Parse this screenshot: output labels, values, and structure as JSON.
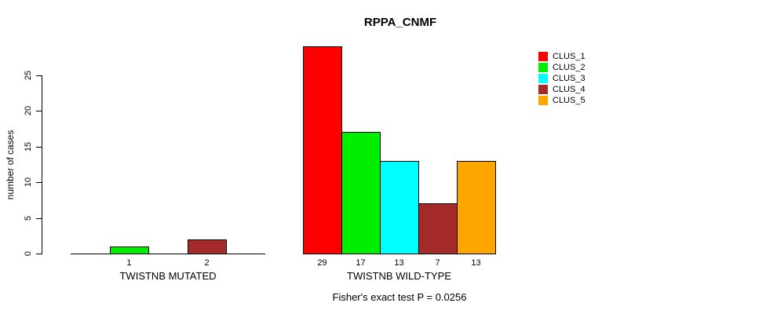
{
  "chart_data": {
    "type": "bar",
    "title": "RPPA_CNMF",
    "ylabel": "number of cases",
    "xlabel": "",
    "yticks": [
      0,
      5,
      10,
      15,
      20,
      25
    ],
    "ylim": [
      0,
      29
    ],
    "grid": false,
    "legend_position": "top-right",
    "legend_entries": [
      {
        "label": "CLUS_1",
        "color": "#FF0000"
      },
      {
        "label": "CLUS_2",
        "color": "#00EE00"
      },
      {
        "label": "CLUS_3",
        "color": "#00FFFF"
      },
      {
        "label": "CLUS_4",
        "color": "#A52A2A"
      },
      {
        "label": "CLUS_5",
        "color": "#FFA500"
      }
    ],
    "series_colors": [
      "#FF0000",
      "#00EE00",
      "#00FFFF",
      "#A52A2A",
      "#FFA500"
    ],
    "groups": [
      {
        "label": "TWISTNB MUTATED",
        "clusters": [
          "CLUS_1",
          "CLUS_2",
          "CLUS_3",
          "CLUS_4",
          "CLUS_5"
        ],
        "values": [
          0,
          1,
          0,
          2,
          0
        ],
        "bar_labels": [
          "",
          "1",
          "",
          "2",
          ""
        ]
      },
      {
        "label": "TWISTNB WILD-TYPE",
        "clusters": [
          "CLUS_1",
          "CLUS_2",
          "CLUS_3",
          "CLUS_4",
          "CLUS_5"
        ],
        "values": [
          29,
          17,
          13,
          7,
          13
        ],
        "bar_labels": [
          "29",
          "17",
          "13",
          "7",
          "13"
        ]
      }
    ],
    "footnote": "Fisher's exact test P = 0.0256"
  }
}
